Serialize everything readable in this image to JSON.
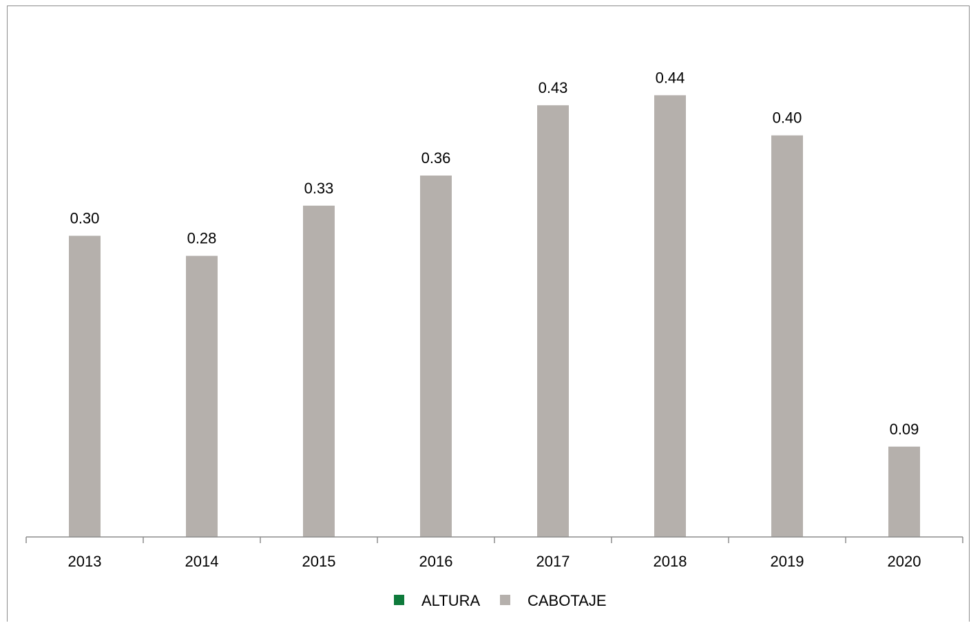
{
  "chart_data": {
    "type": "bar",
    "title": "",
    "categories": [
      "2013",
      "2014",
      "2015",
      "2016",
      "2017",
      "2018",
      "2019",
      "2020"
    ],
    "series": [
      {
        "name": "ALTURA",
        "color": "#0e7a3b",
        "values": [
          0,
          0,
          0,
          0,
          0,
          0,
          0,
          0
        ]
      },
      {
        "name": "CABOTAJE",
        "color": "#b5b0ac",
        "values": [
          0.3,
          0.28,
          0.33,
          0.36,
          0.43,
          0.44,
          0.4,
          0.09
        ]
      }
    ],
    "data_labels": [
      "0.30",
      "0.28",
      "0.33",
      "0.36",
      "0.43",
      "0.44",
      "0.40",
      "0.09"
    ],
    "xlabel": "",
    "ylabel": "",
    "ylim": [
      0,
      0.48
    ],
    "grid": false,
    "legend": "bottom-center"
  }
}
